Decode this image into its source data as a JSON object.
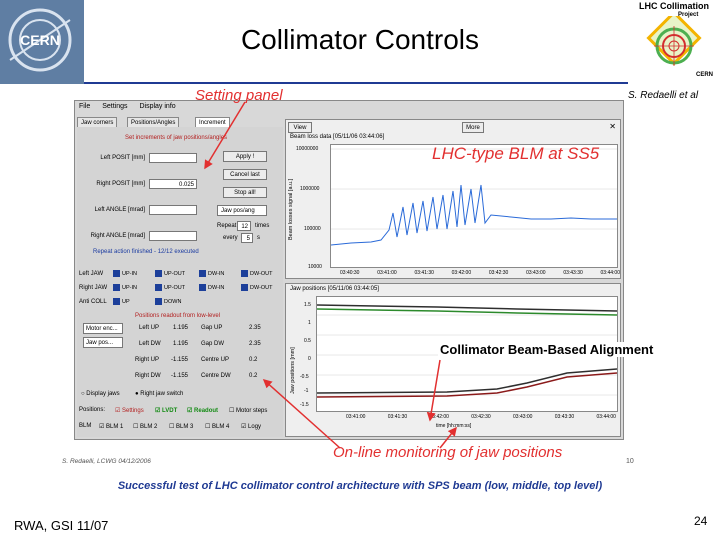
{
  "slide": {
    "title": "Collimator Controls",
    "author": "S. Redaelli et al",
    "caption": "Successful test of LHC collimator control architecture with SPS beam (low, middle, top level)",
    "footer_left": "RWA, GSI 11/07",
    "page_number": "24",
    "screenshot_credit": "S. Redaelli, LCWG 04/12/2006",
    "footnote_num": "10"
  },
  "logos": {
    "cern": "CERN",
    "lhc_top": "LHC Collimation",
    "lhc_sub": "Project",
    "lhc_bottom": "CERN"
  },
  "annotations": {
    "setting_panel": "Setting panel",
    "blm": "LHC-type BLM at SS5",
    "alignment": "Collimator Beam-Based Alignment",
    "online": "On-line monitoring of jaw positions"
  },
  "app": {
    "menu": [
      "File",
      "Settings",
      "Display info"
    ],
    "tabs": [
      "Jaw corners",
      "Positions/Angles",
      "Increment"
    ],
    "increment_title": "Set increments of jaw positions/angles",
    "fields": [
      {
        "label": "Left POSIT [mm]",
        "value": ""
      },
      {
        "label": "Right POSIT [mm]",
        "value": "0.025"
      },
      {
        "label": "Left ANGLE [mrad]",
        "value": ""
      },
      {
        "label": "Right ANGLE [mrad]",
        "value": ""
      }
    ],
    "buttons": {
      "apply": "Apply !",
      "cancel": "Cancel last",
      "stop": "Stop all!"
    },
    "select_jaw": "Jaw pos/ang",
    "repeat_label": "Repeat",
    "repeat_value": "12",
    "repeat_unit": "times",
    "every_label": "every",
    "every_value": "5",
    "every_unit": "s",
    "repeat_status": "Repeat action finished - 12/12 executed",
    "rows": [
      {
        "label": "Left JAW",
        "b1": "UP-IN",
        "b2": "UP-OUT",
        "b3": "DW-IN",
        "b4": "DW-OUT"
      },
      {
        "label": "Right JAW",
        "b1": "UP-IN",
        "b2": "UP-OUT",
        "b3": "DW-IN",
        "b4": "DW-OUT"
      },
      {
        "label": "Anti COLL",
        "b1": "UP",
        "b2": "DOWN",
        "b3": "",
        "b4": ""
      }
    ],
    "readout_title": "Positions readout from low-level",
    "motor_select": "Motor enc...",
    "jaw_select": "Jaw pos...",
    "readout": [
      {
        "name": "Left UP",
        "v1": "1.195",
        "name2": "Gap UP",
        "v2": "2.35"
      },
      {
        "name": "Left DW",
        "v1": "1.195",
        "name2": "Gap DW",
        "v2": "2.35"
      },
      {
        "name": "Right UP",
        "v1": "-1.155",
        "name2": "Centre UP",
        "v2": "0.2"
      },
      {
        "name": "Right DW",
        "v1": "-1.155",
        "name2": "Centre DW",
        "v2": "0.2"
      }
    ],
    "display_jaws": [
      "Display jaws",
      "Right jaw switch"
    ],
    "positions_label": "Positions:",
    "positions_opts": [
      "Settings",
      "LVDT",
      "Readout",
      "Motor steps"
    ],
    "blm_label": "BLM",
    "blm_opts": [
      "BLM 1",
      "BLM 2",
      "BLM 3",
      "BLM 4",
      "Logy"
    ],
    "blm_panel_title": "Beam loss data [05/11/06 03:44:06]",
    "jaw_panel_title": "Jaw positions [05/11/06 03:44:05]",
    "view_btn": "View",
    "more_btn": "More",
    "blm_ylabel": "Beam losses signal [a.u.]",
    "jaw_ylabel": "Jaw positions [mm]",
    "jaw_xlabel": "time [hh:mm:ss]",
    "blm_yticks": [
      "10000000",
      "1000000",
      "100000",
      "10000"
    ],
    "blm_xticks": [
      "03:40:30",
      "03:41:00",
      "03:41:30",
      "03:42:00",
      "03:42:30",
      "03:43:00",
      "03:43:30",
      "03:44:00"
    ],
    "jaw_yticks": [
      "1.5",
      "1",
      "0.5",
      "0",
      "-0.5",
      "-1",
      "-1.5"
    ],
    "jaw_xticks": [
      "03:41:00",
      "03:41:30",
      "03:42:00",
      "03:42:30",
      "03:43:00",
      "03:43:30",
      "03:44:00"
    ]
  },
  "colors": {
    "title_blue": "#1f3a93",
    "annotation_red": "#e23030",
    "blm_line": "#2a6ad8"
  },
  "icons": [
    "arrow-icon",
    "close-icon"
  ]
}
